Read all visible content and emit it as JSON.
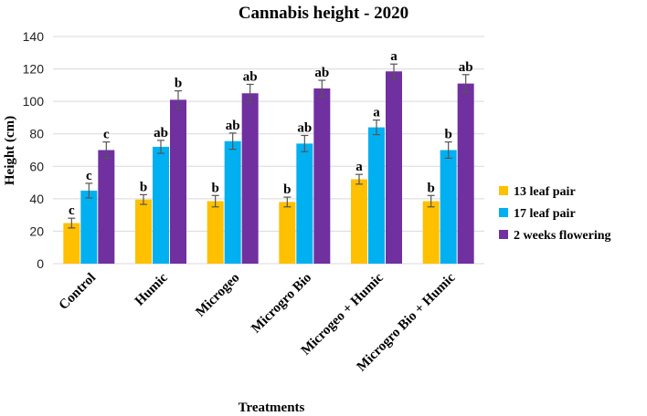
{
  "chart_data": {
    "type": "bar",
    "title": "Cannabis height - 2020",
    "xlabel": "Treatments",
    "ylabel": "Height (cm)",
    "ylim": [
      0,
      140
    ],
    "yticks": [
      0,
      20,
      40,
      60,
      80,
      100,
      120,
      140
    ],
    "grid": true,
    "legend_position": "right",
    "categories": [
      "Control",
      "Humic",
      "Microgeo",
      "Microgro Bio",
      "Microgeo + Humic",
      "Microgro Bio + Humic"
    ],
    "series": [
      {
        "name": "13 leaf pair",
        "color": "#FFC000",
        "values": [
          25,
          39.5,
          38.5,
          38,
          52,
          38.5
        ],
        "errors": [
          3,
          3,
          3.5,
          3,
          3,
          3.5
        ],
        "labels": [
          "c",
          "b",
          "b",
          "b",
          "a",
          "b"
        ]
      },
      {
        "name": "17 leaf pair",
        "color": "#00B0F0",
        "values": [
          45,
          72,
          75.5,
          74,
          84,
          70
        ],
        "errors": [
          4.5,
          4,
          5,
          5,
          4.5,
          5
        ],
        "labels": [
          "c",
          "ab",
          "ab",
          "ab",
          "a",
          "b"
        ]
      },
      {
        "name": "2 weeks flowering",
        "color": "#7030A0",
        "values": [
          70,
          101,
          105,
          108,
          118.5,
          111
        ],
        "errors": [
          5,
          5.5,
          5.5,
          5,
          4.5,
          5.5
        ],
        "labels": [
          "c",
          "b",
          "ab",
          "ab",
          "a",
          "ab"
        ]
      }
    ]
  }
}
